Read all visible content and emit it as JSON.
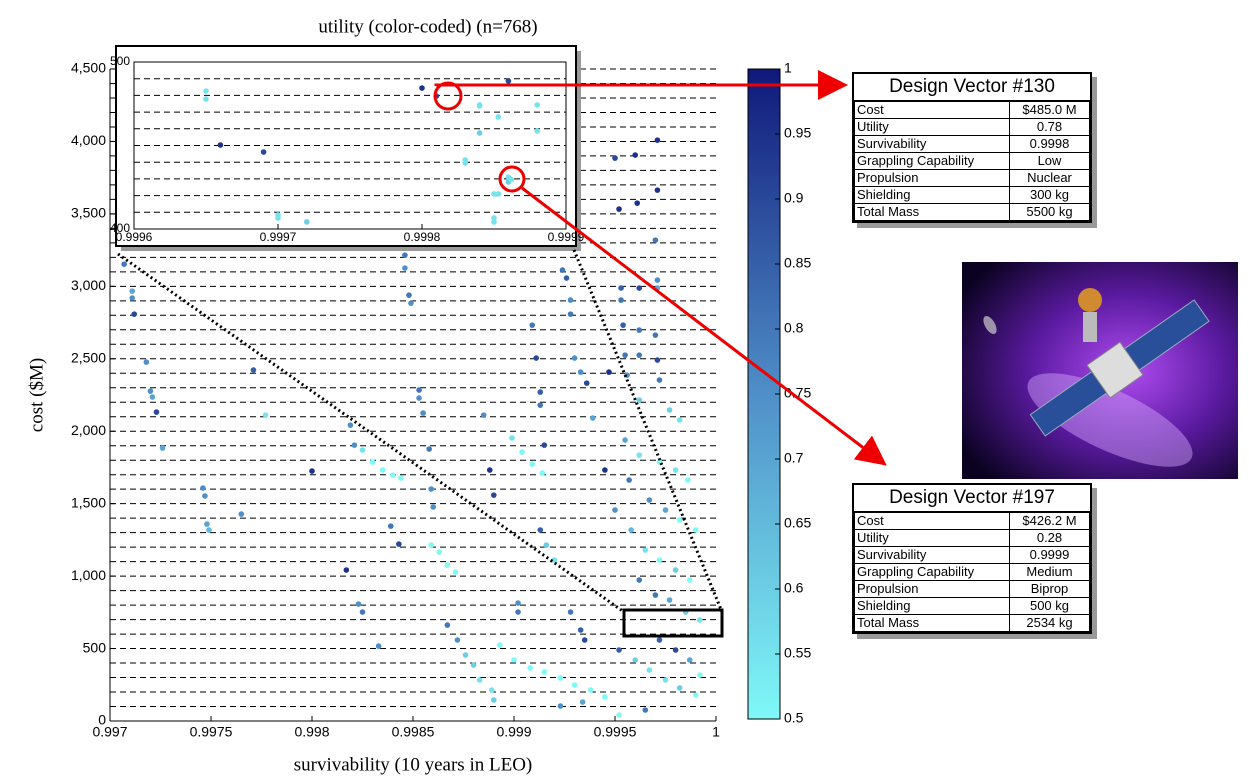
{
  "chart_data": [
    {
      "type": "scatter",
      "title": "utility (color-coded) (n=768)",
      "x_label": "survivability (10 years in LEO)",
      "y_label": "cost ($M)",
      "xlim": [
        0.997,
        1
      ],
      "ylim": [
        0,
        4500
      ],
      "xticks": [
        0.997,
        0.9975,
        0.998,
        0.9985,
        0.999,
        0.9995,
        1
      ],
      "yticks": [
        0,
        500,
        {
          "value": 1000,
          "label": "1,000"
        },
        {
          "value": 1500,
          "label": "1,500"
        },
        {
          "value": 2000,
          "label": "2,000"
        },
        {
          "value": 2500,
          "label": "2,500"
        },
        {
          "value": 3000,
          "label": "3,000"
        },
        {
          "value": 3500,
          "label": "3,500"
        },
        {
          "value": 4000,
          "label": "4,000"
        },
        {
          "value": 4500,
          "label": "4,500"
        }
      ],
      "grid": true,
      "ygrid": [
        100,
        200,
        300,
        400,
        500,
        600,
        700,
        800,
        900,
        1000,
        1100,
        1200,
        1300,
        1400,
        1500,
        1600,
        1700,
        1800,
        1900,
        2000,
        2100,
        2200,
        2300,
        2400,
        2500,
        2600,
        2700,
        2800,
        2900,
        3000,
        3100,
        3200,
        3300,
        3400,
        3500,
        3600,
        3700,
        3800,
        3900,
        4000,
        4100,
        4200,
        4300,
        4400,
        4500
      ],
      "colorbar": {
        "clim": [
          0.5,
          1
        ],
        "ticks": [
          0.5,
          0.55,
          0.6,
          0.65,
          0.7,
          0.75,
          0.8,
          0.85,
          0.9,
          0.95,
          1
        ],
        "colormap": [
          "#7ff8f8",
          "#4f8fc8",
          "#10187a"
        ]
      },
      "x": [
        0.99707,
        0.99711,
        0.99711,
        0.99712,
        0.99718,
        0.9972,
        0.99721,
        0.99723,
        0.99726,
        0.99746,
        0.99747,
        0.99748,
        0.99749,
        0.99771,
        0.99777,
        0.998,
        0.99765,
        0.99819,
        0.99821,
        0.99825,
        0.9983,
        0.99835,
        0.9984,
        0.99844,
        0.99817,
        0.99823,
        0.99825,
        0.99833,
        0.99839,
        0.99843,
        0.99846,
        0.99846,
        0.99848,
        0.99849,
        0.99853,
        0.99853,
        0.99855,
        0.99858,
        0.99859,
        0.9986,
        0.99859,
        0.99863,
        0.99867,
        0.99871,
        0.99867,
        0.99872,
        0.99876,
        0.9988,
        0.99883,
        0.99889,
        0.9989,
        0.99885,
        0.99888,
        0.9989,
        0.99899,
        0.99904,
        0.99909,
        0.99914,
        0.99902,
        0.99902,
        0.99893,
        0.999,
        0.99908,
        0.99915,
        0.99923,
        0.9993,
        0.99938,
        0.99945,
        0.99909,
        0.99911,
        0.99913,
        0.99913,
        0.99915,
        0.99913,
        0.99916,
        0.9992,
        0.99928,
        0.99933,
        0.99935,
        0.99924,
        0.99926,
        0.99928,
        0.99928,
        0.9993,
        0.99933,
        0.99936,
        0.99945,
        0.99947,
        0.99939,
        0.9995,
        0.9996,
        0.99971,
        0.99952,
        0.99961,
        0.99971,
        0.9997,
        0.99953,
        0.99962,
        0.99971,
        0.99953,
        0.99971,
        0.99954,
        0.99962,
        0.9997,
        0.99955,
        0.99962,
        0.99971,
        0.99956,
        0.99972,
        0.99962,
        0.99977,
        0.99982,
        0.99955,
        0.99962,
        0.99972,
        0.9998,
        0.99986,
        0.99957,
        0.99967,
        0.99975,
        0.99982,
        0.9999,
        0.9995,
        0.99958,
        0.99965,
        0.99972,
        0.9998,
        0.99987,
        0.99962,
        0.9997,
        0.99977,
        0.99985,
        0.99952,
        0.9996,
        0.99967,
        0.99975,
        0.99982,
        0.9999,
        0.99972,
        0.9998,
        0.99987,
        0.99992,
        0.99992,
        0.99965,
        0.99952,
        0.99934,
        0.99923
      ],
      "values": [
        3153,
        2967,
        2919,
        2808,
        2477,
        2277,
        2236,
        2132,
        1884,
        1608,
        1553,
        1359,
        1318,
        2422,
        2111,
        1725,
        1428,
        2042,
        1904,
        1870,
        1787,
        1732,
        1697,
        1677,
        1042,
        807,
        752,
        517,
        1345,
        1221,
        3215,
        3126,
        2939,
        2884,
        2284,
        2229,
        2125,
        1877,
        1601,
        1477,
        1214,
        1166,
        1076,
        1028,
        662,
        559,
        455,
        386,
        283,
        214,
        145,
        2111,
        1732,
        1559,
        1953,
        1856,
        1773,
        1711,
        814,
        752,
        524,
        421,
        366,
        338,
        297,
        248,
        214,
        166,
        2732,
        2505,
        2270,
        2180,
        1904,
        1318,
        1214,
        1111,
        752,
        628,
        559,
        3112,
        3057,
        2905,
        2808,
        2505,
        2408,
        2332,
        1732,
        2408,
        2091,
        3885,
        3906,
        4009,
        3533,
        3574,
        3664,
        3319,
        2988,
        2988,
        2988,
        2905,
        3043,
        2732,
        2698,
        2663,
        2525,
        2525,
        2491,
        2387,
        2353,
        2215,
        2146,
        2077,
        1939,
        1835,
        1787,
        1732,
        1663,
        1663,
        1525,
        1456,
        1387,
        1318,
        1456,
        1318,
        1180,
        1111,
        1042,
        973,
        973,
        869,
        835,
        752,
        490,
        421,
        352,
        283,
        228,
        179,
        559,
        490,
        421,
        697,
        317,
        76,
        41,
        131,
        103
      ],
      "color_values": [
        0.8,
        0.7,
        0.75,
        0.9,
        0.75,
        0.75,
        0.7,
        0.9,
        0.7,
        0.75,
        0.75,
        0.7,
        0.65,
        0.85,
        0.55,
        0.95,
        0.75,
        0.75,
        0.75,
        0.55,
        0.5,
        0.5,
        0.5,
        0.5,
        0.95,
        0.75,
        0.8,
        0.75,
        0.8,
        0.9,
        0.8,
        0.75,
        0.8,
        0.75,
        0.8,
        0.75,
        0.75,
        0.8,
        0.75,
        0.75,
        0.5,
        0.5,
        0.5,
        0.5,
        0.8,
        0.75,
        0.6,
        0.6,
        0.55,
        0.55,
        0.6,
        0.75,
        0.95,
        0.9,
        0.55,
        0.5,
        0.5,
        0.5,
        0.75,
        0.8,
        0.5,
        0.5,
        0.5,
        0.5,
        0.5,
        0.5,
        0.5,
        0.5,
        0.8,
        0.9,
        0.85,
        0.8,
        0.9,
        0.85,
        0.6,
        0.55,
        0.8,
        0.85,
        0.9,
        0.8,
        0.85,
        0.75,
        0.8,
        0.75,
        0.75,
        0.9,
        0.95,
        0.95,
        0.7,
        0.9,
        0.95,
        0.95,
        0.95,
        0.95,
        0.95,
        0.8,
        0.85,
        0.9,
        0.7,
        0.8,
        0.75,
        0.85,
        0.8,
        0.8,
        0.8,
        0.8,
        0.9,
        0.75,
        0.8,
        0.6,
        0.6,
        0.55,
        0.7,
        0.55,
        0.5,
        0.55,
        0.5,
        0.8,
        0.75,
        0.7,
        0.5,
        0.5,
        0.75,
        0.65,
        0.55,
        0.5,
        0.6,
        0.5,
        0.8,
        0.8,
        0.7,
        0.6,
        0.85,
        0.6,
        0.55,
        0.55,
        0.6,
        0.5,
        0.85,
        0.9,
        0.7,
        0.55,
        0.5,
        0.8,
        0.5,
        0.7,
        0.75
      ]
    },
    {
      "type": "scatter",
      "xlim": [
        0.9996,
        0.9999
      ],
      "ylim": [
        400,
        500
      ],
      "xticks": [
        0.9996,
        0.9997,
        0.9998,
        0.9999
      ],
      "yticks": [
        400,
        500
      ],
      "grid": true,
      "ygrid": [
        410,
        420,
        430,
        440,
        450,
        460,
        470,
        480,
        490
      ],
      "x": [
        0.99965,
        0.99965,
        0.99966,
        0.99969,
        0.9997,
        0.9997,
        0.99972,
        0.9998,
        0.99981,
        0.99983,
        0.99983,
        0.99984,
        0.99984,
        0.99984,
        0.99985,
        0.99985,
        0.99985,
        0.999853,
        0.999853,
        0.99986,
        0.99986,
        0.99986,
        0.999862,
        0.99988,
        0.99988
      ],
      "values": [
        482.6,
        477.8,
        450.3,
        446.1,
        408.4,
        406.6,
        404.2,
        484.4,
        479.6,
        441.3,
        439.5,
        474.3,
        457.5,
        473.7,
        406.6,
        404.2,
        421.0,
        421.0,
        467.1,
        428.1,
        431.1,
        488.6,
        429.5,
        474.3,
        458.7
      ],
      "color_values": [
        0.55,
        0.55,
        0.95,
        0.9,
        0.55,
        0.55,
        0.6,
        0.95,
        0.9,
        0.55,
        0.55,
        0.55,
        0.6,
        0.55,
        0.55,
        0.55,
        0.55,
        0.55,
        0.55,
        0.6,
        0.55,
        0.9,
        0.55,
        0.55,
        0.55
      ]
    }
  ],
  "design_vectors": [
    {
      "title": "Design Vector #130",
      "rows": [
        [
          "Cost",
          "$485.0 M"
        ],
        [
          "Utility",
          "0.78"
        ],
        [
          "Survivability",
          "0.9998"
        ],
        [
          "Grappling Capability",
          "Low"
        ],
        [
          "Propulsion",
          "Nuclear"
        ],
        [
          "Shielding",
          "300 kg"
        ],
        [
          "Total Mass",
          "5500 kg"
        ]
      ]
    },
    {
      "title": "Design Vector #197",
      "rows": [
        [
          "Cost",
          "$426.2 M"
        ],
        [
          "Utility",
          "0.28"
        ],
        [
          "Survivability",
          "0.9999"
        ],
        [
          "Grappling Capability",
          "Medium"
        ],
        [
          "Propulsion",
          "Biprop"
        ],
        [
          "Shielding",
          "500 kg"
        ],
        [
          "Total Mass",
          "2534 kg"
        ]
      ]
    }
  ]
}
